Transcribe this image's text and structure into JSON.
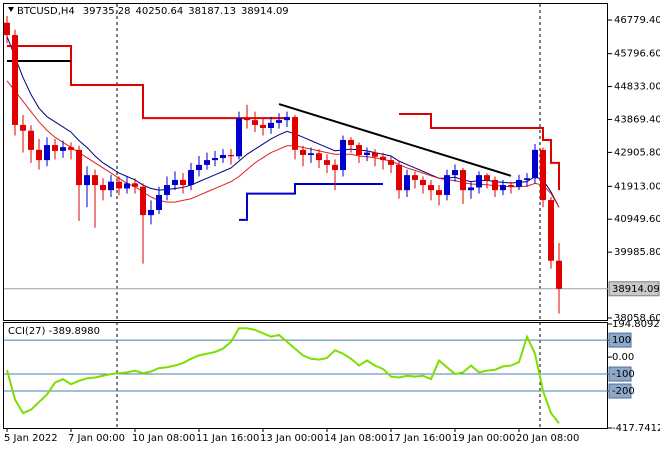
{
  "chart_data": {
    "type": "candlestick",
    "symbol": "BTCUSD,H4",
    "header_values": [
      39735.28,
      40250.64,
      38187.13,
      38914.09
    ],
    "categories": [
      "5 Jan 2022",
      null,
      null,
      null,
      null,
      null,
      null,
      null,
      "7 Jan 00:00",
      null,
      null,
      null,
      null,
      null,
      null,
      null,
      "10 Jan 08:00",
      null,
      null,
      null,
      null,
      null,
      null,
      null,
      "11 Jan 16:00",
      null,
      null,
      null,
      null,
      null,
      null,
      null,
      "13 Jan 00:00",
      null,
      null,
      null,
      null,
      null,
      null,
      null,
      "14 Jan 08:00",
      null,
      null,
      null,
      null,
      null,
      null,
      null,
      "17 Jan 16:00",
      null,
      null,
      null,
      null,
      null,
      null,
      null,
      "19 Jan 00:00",
      null,
      null,
      null,
      null,
      null,
      null,
      null,
      "20 Jan 08:00",
      null,
      null,
      null,
      null,
      null
    ],
    "open": [
      46700,
      46340,
      43710,
      43540,
      42980,
      42680,
      43120,
      42950,
      43060,
      42980,
      41950,
      42240,
      41950,
      41800,
      42050,
      41850,
      42000,
      41900,
      41070,
      41220,
      41660,
      41950,
      42100,
      41950,
      42390,
      42540,
      42680,
      42740,
      42830,
      42790,
      43910,
      43850,
      43710,
      43620,
      43770,
      43850,
      43940,
      42980,
      42830,
      42880,
      42680,
      42540,
      42390,
      43270,
      43120,
      42830,
      42900,
      42780,
      42680,
      42540,
      41800,
      42240,
      42100,
      41950,
      41800,
      41660,
      42240,
      42390,
      41800,
      41880,
      42240,
      42100,
      41800,
      41950,
      41900,
      42100,
      42150,
      42980,
      41510,
      39735.28
    ],
    "high": [
      46900,
      46500,
      44000,
      43700,
      43300,
      43350,
      43300,
      43250,
      43200,
      43100,
      42500,
      42400,
      42150,
      42250,
      42200,
      42200,
      42150,
      42000,
      41500,
      41900,
      42200,
      42350,
      42300,
      42600,
      42800,
      42900,
      42950,
      43000,
      43000,
      44100,
      44300,
      44100,
      43900,
      43950,
      44050,
      44100,
      44000,
      43100,
      43050,
      43000,
      42850,
      42700,
      43400,
      43350,
      43200,
      43050,
      43000,
      42900,
      42800,
      42650,
      42400,
      42350,
      42200,
      42100,
      41950,
      42400,
      42550,
      42450,
      42050,
      42350,
      42300,
      42200,
      42100,
      42050,
      42250,
      42300,
      43150,
      43050,
      41600,
      40250.64
    ],
    "low": [
      46100,
      43400,
      42900,
      42600,
      42400,
      42500,
      42700,
      42750,
      42700,
      40900,
      41300,
      40700,
      41500,
      41600,
      41650,
      41700,
      41700,
      39650,
      40800,
      41100,
      41500,
      41800,
      41700,
      41800,
      42200,
      42400,
      42500,
      42600,
      42550,
      42700,
      43600,
      43500,
      43400,
      43450,
      43600,
      43650,
      42700,
      42500,
      42600,
      42450,
      42300,
      41800,
      42200,
      42900,
      42600,
      42650,
      42500,
      42400,
      42300,
      41550,
      41600,
      41850,
      41700,
      41500,
      41350,
      41500,
      42050,
      41400,
      41550,
      41700,
      41850,
      41600,
      41650,
      41700,
      41800,
      41900,
      42000,
      41300,
      39500,
      38187.13
    ],
    "close": [
      46340,
      43710,
      43540,
      42980,
      42680,
      43120,
      42950,
      43060,
      42980,
      41950,
      42240,
      41950,
      41800,
      42050,
      41850,
      42000,
      41900,
      41070,
      41220,
      41660,
      41950,
      42100,
      41950,
      42390,
      42540,
      42680,
      42740,
      42830,
      42790,
      43910,
      43850,
      43710,
      43620,
      43770,
      43850,
      43940,
      42980,
      42830,
      42880,
      42680,
      42540,
      42390,
      43270,
      43120,
      42830,
      42900,
      42780,
      42680,
      42540,
      41800,
      42240,
      42100,
      41950,
      41800,
      41660,
      42240,
      42390,
      41800,
      41880,
      42240,
      42100,
      41800,
      41950,
      41900,
      42100,
      42150,
      42980,
      41510,
      39735.28,
      38914.09
    ],
    "up_color": "#0000cd",
    "down_color": "#e00000",
    "lines": [
      {
        "color": "#000080",
        "width": 1,
        "values": [
          46300,
          45700,
          45100,
          44600,
          44200,
          43950,
          43800,
          43650,
          43500,
          43250,
          43050,
          42800,
          42600,
          42450,
          42300,
          42200,
          42100,
          41950,
          41850,
          41800,
          41820,
          41850,
          41880,
          41950,
          42050,
          42150,
          42250,
          42350,
          42450,
          42650,
          42850,
          43000,
          43150,
          43300,
          43420,
          43520,
          43450,
          43350,
          43250,
          43150,
          43050,
          42950,
          42980,
          43000,
          42980,
          42950,
          42900,
          42850,
          42800,
          42650,
          42550,
          42450,
          42350,
          42250,
          42150,
          42150,
          42180,
          42100,
          42050,
          42080,
          42090,
          42050,
          42030,
          42010,
          42030,
          42050,
          42200,
          42100,
          41750,
          41300
        ]
      },
      {
        "color": "#e02020",
        "width": 1,
        "values": [
          45000,
          44700,
          44400,
          44100,
          43800,
          43550,
          43350,
          43200,
          43050,
          42900,
          42750,
          42600,
          42450,
          42300,
          42150,
          42000,
          41900,
          41750,
          41600,
          41500,
          41450,
          41450,
          41500,
          41550,
          41650,
          41750,
          41850,
          41950,
          42050,
          42200,
          42400,
          42600,
          42750,
          42900,
          43000,
          43100,
          43100,
          43050,
          43000,
          42950,
          42900,
          42850,
          42850,
          42850,
          42800,
          42780,
          42750,
          42700,
          42650,
          42550,
          42450,
          42380,
          42300,
          42220,
          42150,
          42100,
          42080,
          42020,
          41980,
          41970,
          41960,
          41930,
          41920,
          41900,
          41900,
          41920,
          42000,
          41950,
          41700,
          41300
        ]
      },
      {
        "color": "#e00000",
        "width": 2,
        "values": [
          46020,
          46020,
          46020,
          46020,
          46020,
          46020,
          46020,
          46020,
          44880,
          44880,
          44880,
          44880,
          44880,
          44880,
          44880,
          44880,
          44880,
          43910,
          43910,
          43910,
          43910,
          43910,
          43910,
          43910,
          43910,
          43910,
          43910,
          43910,
          43910,
          43910,
          43910,
          43910,
          43910,
          43910,
          43910,
          43910,
          null,
          null,
          null,
          null,
          null,
          null,
          null,
          null,
          null,
          null,
          null,
          null,
          null,
          44030,
          44030,
          44030,
          44030,
          43620,
          43620,
          43620,
          43620,
          43620,
          43620,
          43620,
          43620,
          43620,
          43620,
          43620,
          43620,
          43620,
          43620,
          43270,
          42600,
          41800
        ]
      },
      {
        "color": "#0000cd",
        "width": 2,
        "values": [
          null,
          null,
          null,
          null,
          null,
          null,
          null,
          null,
          null,
          null,
          null,
          null,
          null,
          null,
          null,
          null,
          null,
          null,
          null,
          null,
          null,
          null,
          null,
          null,
          null,
          null,
          null,
          null,
          null,
          40930,
          41700,
          41700,
          41700,
          41700,
          41700,
          41700,
          41980,
          41980,
          41980,
          41980,
          41980,
          41980,
          41980,
          41980,
          41980,
          41980,
          41980,
          41980,
          null,
          null,
          null,
          null,
          null,
          null,
          null,
          null,
          null,
          null,
          null,
          null,
          null,
          null,
          null,
          null,
          null,
          null,
          null,
          null,
          null,
          null
        ]
      },
      {
        "color": "#000000",
        "width": 2,
        "values": [
          45580,
          45580,
          45580,
          45580,
          45580,
          45580,
          45580,
          45580,
          45580,
          null,
          null,
          null,
          null,
          null,
          null,
          null,
          null,
          null,
          null,
          null,
          null,
          null,
          null,
          null,
          null,
          null,
          null,
          null,
          null,
          null,
          null,
          null,
          null,
          null,
          null,
          null,
          null,
          null,
          null,
          null,
          null,
          null,
          null,
          null,
          null,
          null,
          null,
          null,
          null,
          null,
          null,
          null,
          null,
          null,
          null,
          null,
          null,
          null,
          null,
          null,
          null,
          null,
          null,
          null,
          null,
          null,
          null,
          null,
          null,
          null
        ]
      }
    ],
    "trendline": {
      "color": "#000000",
      "from": 34,
      "to": 63,
      "values": [
        44320,
        42220
      ]
    },
    "last_price": 38914.09,
    "ylim": [
      38000,
      47220
    ],
    "yticks": [
      {
        "value": 38058.6,
        "label": "38058.60"
      },
      {
        "value": 39985.8,
        "label": "39985.80"
      },
      {
        "value": 40949.6,
        "label": "40949.60"
      },
      {
        "value": 41913,
        "label": "41913.00"
      },
      {
        "value": 42905.8,
        "label": "42905.80"
      },
      {
        "value": 43869.4,
        "label": "43869.40"
      },
      {
        "value": 44833,
        "label": "44833.00"
      },
      {
        "value": 45796.6,
        "label": "45796.60"
      },
      {
        "value": 46779.4,
        "label": "46779.40"
      }
    ],
    "indicator": {
      "title": "CCI(27) -389.8980",
      "color": "#7fdd00",
      "values": [
        -76,
        -250,
        -330,
        -310,
        -265,
        -220,
        -150,
        -130,
        -160,
        -140,
        -125,
        -120,
        -110,
        -100,
        -95,
        -90,
        -80,
        -95,
        -85,
        -65,
        -60,
        -50,
        -35,
        -10,
        10,
        20,
        30,
        50,
        90,
        170,
        170,
        160,
        140,
        120,
        130,
        90,
        50,
        10,
        -10,
        -15,
        -5,
        40,
        20,
        -10,
        -50,
        -20,
        -50,
        -70,
        -115,
        -120,
        -110,
        -115,
        -110,
        -130,
        -20,
        -60,
        -100,
        -90,
        -50,
        -90,
        -80,
        -75,
        -55,
        -50,
        -30,
        120,
        20,
        -200,
        -330,
        -389.898
      ],
      "ylim": [
        -417.7412,
        194.8092
      ],
      "yticks": [
        {
          "value": 194.8092,
          "label": "194.8092"
        },
        100,
        {
          "value": 0,
          "label": "0.00"
        },
        -100,
        -200,
        {
          "value": -417.7412,
          "label": "-417.7412"
        }
      ],
      "levels": [
        100,
        -100,
        -200
      ]
    }
  }
}
